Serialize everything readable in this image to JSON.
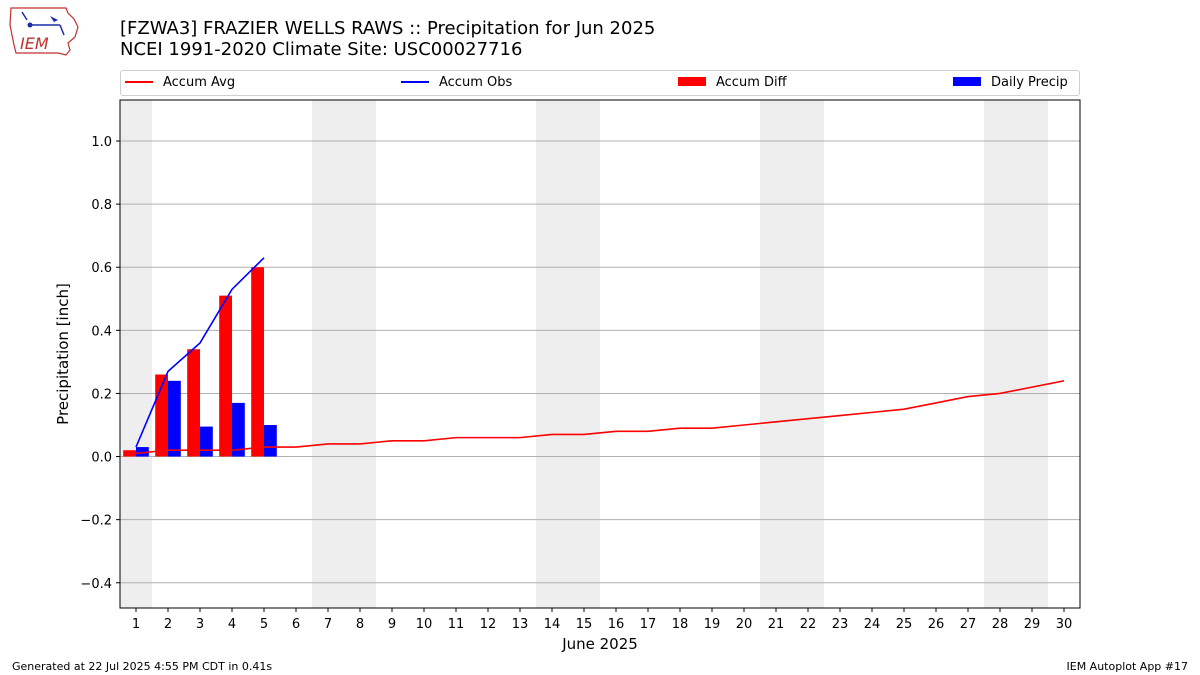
{
  "title": {
    "line1": "[FZWA3] FRAZIER WELLS RAWS :: Precipitation for Jun 2025",
    "line2": "NCEI 1991-2020 Climate Site: USC00027716"
  },
  "logo_text": "IEM",
  "footer": {
    "left": "Generated at 22 Jul 2025 4:55 PM CDT in 0.41s",
    "right": "IEM Autoplot App #17"
  },
  "legend": [
    {
      "label": "Accum Avg",
      "color": "#ff0000",
      "kind": "line"
    },
    {
      "label": "Accum Obs",
      "color": "#0000ff",
      "kind": "line"
    },
    {
      "label": "Accum Diff",
      "color": "#ff0000",
      "kind": "box"
    },
    {
      "label": "Daily Precip",
      "color": "#0000ff",
      "kind": "box"
    }
  ],
  "chart_data": {
    "type": "bar",
    "xlabel": "June 2025",
    "ylabel": "Precipitation [inch]",
    "x": [
      1,
      2,
      3,
      4,
      5,
      6,
      7,
      8,
      9,
      10,
      11,
      12,
      13,
      14,
      15,
      16,
      17,
      18,
      19,
      20,
      21,
      22,
      23,
      24,
      25,
      26,
      27,
      28,
      29,
      30
    ],
    "ylim": [
      -0.48,
      1.13
    ],
    "yticks": [
      -0.4,
      -0.2,
      0.0,
      0.2,
      0.4,
      0.6,
      0.8,
      1.0
    ],
    "ytick_labels": [
      "−0.4",
      "−0.2",
      "0.0",
      "0.2",
      "0.4",
      "0.6",
      "0.8",
      "1.0"
    ],
    "grid": true,
    "weekend_shading_days": [
      1,
      7,
      8,
      14,
      15,
      21,
      22,
      28,
      29
    ],
    "series": [
      {
        "name": "Accum Avg",
        "kind": "line",
        "color": "#ff0000",
        "values": [
          0.01,
          0.02,
          0.02,
          0.02,
          0.03,
          0.03,
          0.04,
          0.04,
          0.05,
          0.05,
          0.06,
          0.06,
          0.06,
          0.07,
          0.07,
          0.08,
          0.08,
          0.09,
          0.09,
          0.1,
          0.11,
          0.12,
          0.13,
          0.14,
          0.15,
          0.17,
          0.19,
          0.2,
          0.22,
          0.24
        ]
      },
      {
        "name": "Accum Obs",
        "kind": "line",
        "color": "#0000ff",
        "x": [
          1,
          2,
          3,
          4,
          5
        ],
        "values": [
          0.03,
          0.27,
          0.36,
          0.53,
          0.63
        ]
      },
      {
        "name": "Accum Diff",
        "kind": "bar",
        "color": "#ff0000",
        "x": [
          1,
          2,
          3,
          4,
          5
        ],
        "values": [
          0.02,
          0.26,
          0.34,
          0.51,
          0.6
        ]
      },
      {
        "name": "Daily Precip",
        "kind": "bar",
        "color": "#0000ff",
        "x": [
          1,
          2,
          3,
          4,
          5
        ],
        "values": [
          0.03,
          0.24,
          0.095,
          0.17,
          0.1
        ]
      }
    ]
  }
}
